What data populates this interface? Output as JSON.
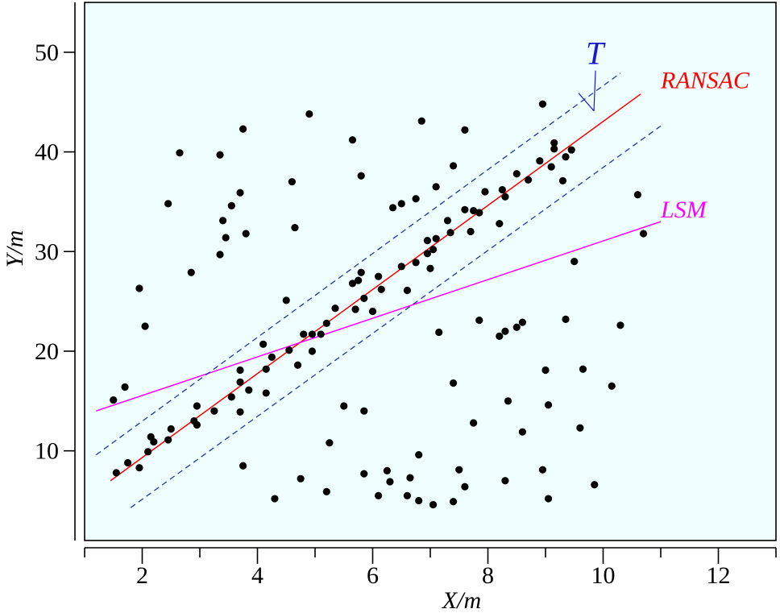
{
  "chart_data": {
    "type": "scatter",
    "xlabel": "X/m",
    "ylabel": "Y/m",
    "xlim": [
      1.0,
      13.0
    ],
    "ylim": [
      1.0,
      55.0
    ],
    "x_ticks": [
      2,
      4,
      6,
      8,
      10,
      12
    ],
    "x_minor_ticks": [
      1,
      3,
      5,
      7,
      9,
      11,
      13
    ],
    "y_ticks": [
      10,
      20,
      30,
      40,
      50
    ],
    "grid": false,
    "background": "#efffff",
    "points": [
      [
        1.5,
        15.1
      ],
      [
        1.55,
        7.8
      ],
      [
        1.7,
        16.4
      ],
      [
        1.75,
        8.8
      ],
      [
        1.95,
        8.3
      ],
      [
        1.95,
        26.3
      ],
      [
        2.05,
        22.5
      ],
      [
        2.1,
        9.9
      ],
      [
        2.15,
        11.4
      ],
      [
        2.2,
        10.9
      ],
      [
        2.45,
        11.1
      ],
      [
        2.5,
        12.2
      ],
      [
        2.45,
        34.8
      ],
      [
        2.65,
        39.9
      ],
      [
        2.85,
        27.9
      ],
      [
        2.9,
        13.0
      ],
      [
        2.95,
        12.6
      ],
      [
        2.95,
        14.5
      ],
      [
        3.25,
        14.0
      ],
      [
        3.35,
        29.7
      ],
      [
        3.35,
        39.7
      ],
      [
        3.4,
        33.1
      ],
      [
        3.45,
        31.4
      ],
      [
        3.55,
        15.4
      ],
      [
        3.55,
        34.6
      ],
      [
        3.7,
        13.9
      ],
      [
        3.7,
        16.9
      ],
      [
        3.7,
        18.1
      ],
      [
        3.7,
        35.9
      ],
      [
        3.75,
        42.3
      ],
      [
        3.75,
        8.5
      ],
      [
        3.8,
        31.8
      ],
      [
        3.85,
        16.1
      ],
      [
        4.1,
        20.7
      ],
      [
        4.15,
        18.2
      ],
      [
        4.15,
        15.8
      ],
      [
        4.25,
        19.4
      ],
      [
        4.3,
        5.2
      ],
      [
        4.5,
        25.1
      ],
      [
        4.55,
        20.1
      ],
      [
        4.6,
        37.0
      ],
      [
        4.65,
        32.4
      ],
      [
        4.7,
        18.6
      ],
      [
        4.75,
        7.2
      ],
      [
        4.8,
        21.7
      ],
      [
        4.9,
        43.8
      ],
      [
        4.95,
        20.0
      ],
      [
        4.95,
        21.7
      ],
      [
        5.1,
        21.7
      ],
      [
        5.2,
        22.8
      ],
      [
        5.2,
        5.9
      ],
      [
        5.25,
        10.8
      ],
      [
        5.35,
        24.3
      ],
      [
        5.5,
        14.5
      ],
      [
        5.65,
        26.8
      ],
      [
        5.65,
        41.2
      ],
      [
        5.7,
        24.2
      ],
      [
        5.75,
        27.1
      ],
      [
        5.8,
        37.6
      ],
      [
        5.8,
        27.9
      ],
      [
        5.85,
        14.0
      ],
      [
        5.85,
        25.3
      ],
      [
        5.85,
        7.7
      ],
      [
        6.0,
        24.0
      ],
      [
        6.1,
        5.5
      ],
      [
        6.1,
        27.5
      ],
      [
        6.15,
        26.2
      ],
      [
        6.25,
        8.0
      ],
      [
        6.3,
        6.9
      ],
      [
        6.35,
        34.4
      ],
      [
        6.5,
        28.5
      ],
      [
        6.5,
        34.8
      ],
      [
        6.6,
        26.1
      ],
      [
        6.6,
        5.5
      ],
      [
        6.65,
        7.3
      ],
      [
        6.75,
        28.9
      ],
      [
        6.75,
        35.3
      ],
      [
        6.8,
        5.0
      ],
      [
        6.8,
        9.6
      ],
      [
        6.85,
        43.1
      ],
      [
        6.95,
        29.8
      ],
      [
        6.95,
        31.1
      ],
      [
        7.0,
        28.3
      ],
      [
        7.05,
        4.6
      ],
      [
        7.05,
        30.2
      ],
      [
        7.1,
        31.3
      ],
      [
        7.1,
        36.5
      ],
      [
        7.15,
        21.9
      ],
      [
        7.3,
        33.1
      ],
      [
        7.35,
        31.9
      ],
      [
        7.4,
        38.6
      ],
      [
        7.4,
        16.8
      ],
      [
        7.4,
        4.9
      ],
      [
        7.5,
        8.1
      ],
      [
        7.6,
        34.2
      ],
      [
        7.6,
        6.4
      ],
      [
        7.6,
        42.2
      ],
      [
        7.7,
        32.0
      ],
      [
        7.75,
        34.1
      ],
      [
        7.75,
        12.8
      ],
      [
        7.85,
        23.1
      ],
      [
        7.85,
        33.9
      ],
      [
        7.95,
        36.0
      ],
      [
        8.2,
        32.8
      ],
      [
        8.2,
        21.5
      ],
      [
        8.25,
        36.2
      ],
      [
        8.3,
        22.0
      ],
      [
        8.3,
        35.5
      ],
      [
        8.3,
        7.0
      ],
      [
        8.35,
        15.0
      ],
      [
        8.5,
        22.4
      ],
      [
        8.5,
        37.8
      ],
      [
        8.6,
        11.9
      ],
      [
        8.6,
        22.9
      ],
      [
        8.7,
        37.2
      ],
      [
        8.9,
        39.1
      ],
      [
        8.95,
        44.8
      ],
      [
        8.95,
        8.1
      ],
      [
        9.0,
        18.1
      ],
      [
        9.05,
        14.6
      ],
      [
        9.05,
        5.2
      ],
      [
        9.1,
        38.5
      ],
      [
        9.15,
        40.9
      ],
      [
        9.15,
        40.3
      ],
      [
        9.3,
        37.1
      ],
      [
        9.35,
        39.5
      ],
      [
        9.35,
        23.2
      ],
      [
        9.45,
        40.2
      ],
      [
        9.5,
        29.0
      ],
      [
        9.6,
        12.3
      ],
      [
        9.65,
        18.2
      ],
      [
        9.85,
        6.6
      ],
      [
        10.15,
        16.5
      ],
      [
        10.3,
        22.6
      ],
      [
        10.6,
        35.7
      ],
      [
        10.7,
        31.8
      ]
    ],
    "lines": [
      {
        "name": "RANSAC",
        "color": "#ff0000",
        "x": [
          1.45,
          10.65
        ],
        "y": [
          7.0,
          45.8
        ],
        "dash": false
      },
      {
        "name": "LSM",
        "color": "#ff00ff",
        "x": [
          1.2,
          11.0
        ],
        "y": [
          14.0,
          33.0
        ],
        "dash": false
      },
      {
        "name": "",
        "color": "#2233aa",
        "x": [
          1.2,
          10.3
        ],
        "y": [
          9.6,
          47.9
        ],
        "dash": true
      },
      {
        "name": "",
        "color": "#2233aa",
        "x": [
          1.8,
          11.0
        ],
        "y": [
          4.3,
          42.6
        ],
        "dash": true
      }
    ],
    "annotations": [
      {
        "text": "RANSAC",
        "color": "#ff0000",
        "x": 11.0,
        "y": 46.4
      },
      {
        "text": "LSM",
        "color": "#ff00ff",
        "x": 11.0,
        "y": 33.4
      },
      {
        "text": "T",
        "color": "#1a1acc",
        "x": 9.7,
        "y": 48.8
      }
    ]
  }
}
